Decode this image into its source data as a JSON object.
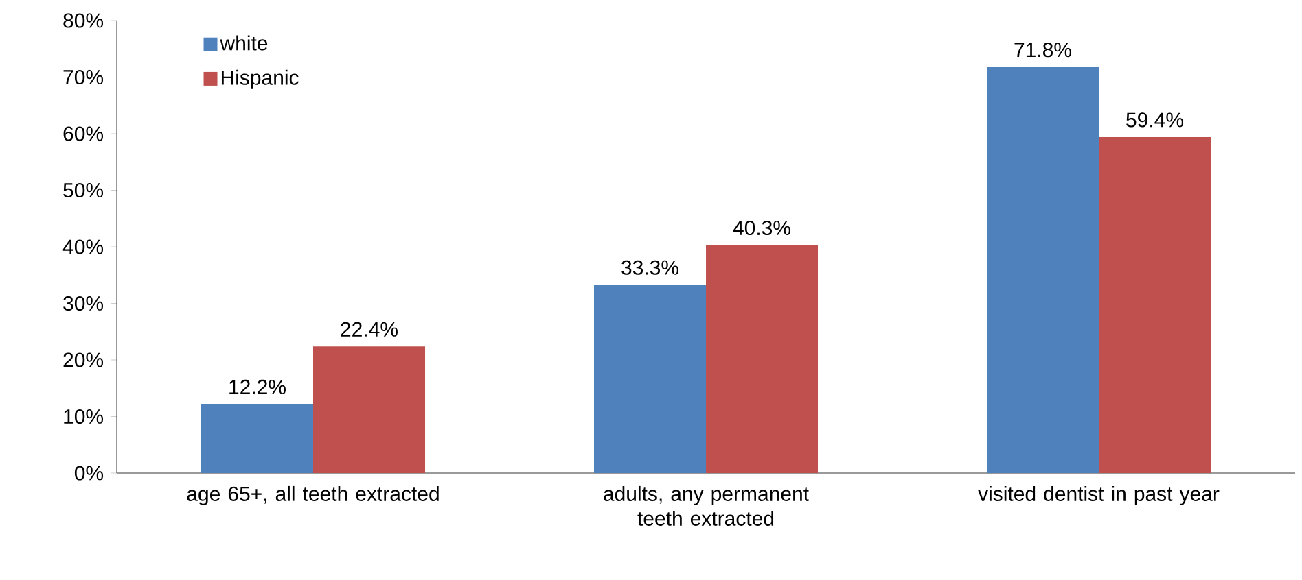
{
  "chart_data": {
    "type": "bar",
    "categories": [
      "age 65+, all teeth extracted",
      "adults, any permanent teeth extracted",
      "visited dentist in past year"
    ],
    "series": [
      {
        "name": "white",
        "color": "#4f81bd",
        "values": [
          12.2,
          33.3,
          71.8
        ],
        "value_labels": [
          "12.2%",
          "33.3%",
          "71.8%"
        ]
      },
      {
        "name": "Hispanic",
        "color": "#c0504d",
        "values": [
          22.4,
          40.3,
          59.4
        ],
        "value_labels": [
          "22.4%",
          "40.3%",
          "59.4%"
        ]
      }
    ],
    "ylim": [
      0,
      80
    ],
    "yticks": [
      {
        "value": 0,
        "label": "0%"
      },
      {
        "value": 10,
        "label": "10%"
      },
      {
        "value": 20,
        "label": "20%"
      },
      {
        "value": 30,
        "label": "30%"
      },
      {
        "value": 40,
        "label": "40%"
      },
      {
        "value": 50,
        "label": "50%"
      },
      {
        "value": 60,
        "label": "60%"
      },
      {
        "value": 70,
        "label": "70%"
      },
      {
        "value": 80,
        "label": "80%"
      }
    ],
    "grid": false,
    "legend": "top left"
  }
}
